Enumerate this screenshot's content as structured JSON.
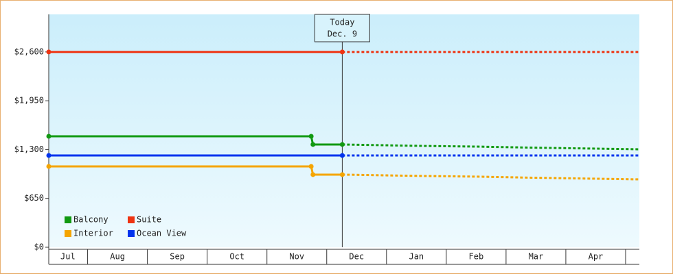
{
  "chart_data": {
    "type": "line",
    "categories": [
      "Jul",
      "Aug",
      "Sep",
      "Oct",
      "Nov",
      "Dec",
      "Jan",
      "Feb",
      "Mar",
      "Apr"
    ],
    "xticks": [
      0.67,
      1.5,
      2.5,
      3.5,
      4.5,
      5.5,
      6.5,
      7.5,
      8.5,
      9.5
    ],
    "xlim": [
      0.35,
      10.23
    ],
    "ylim": [
      0,
      3100
    ],
    "yticks": [
      {
        "value": 0,
        "label": "$0"
      },
      {
        "value": 650,
        "label": "$650"
      },
      {
        "value": 1300,
        "label": "$1,300"
      },
      {
        "value": 1950,
        "label": "$1,950"
      },
      {
        "value": 2600,
        "label": "$2,600"
      }
    ],
    "today": {
      "x": 5.26,
      "label": [
        "Today",
        "Dec. 9"
      ]
    },
    "legend": "lower left",
    "series": [
      {
        "name": "Balcony",
        "color": "#119911",
        "x": [
          0.35,
          4.74,
          4.77,
          5.26,
          6.5,
          7.5,
          8.5,
          10.23
        ],
        "values": [
          1477,
          1477,
          1368,
          1368,
          1350,
          1340,
          1325,
          1304
        ]
      },
      {
        "name": "Suite",
        "color": "#ee3311",
        "x": [
          0.35,
          5.26,
          10.23
        ],
        "values": [
          2600,
          2600,
          2600
        ]
      },
      {
        "name": "Interior",
        "color": "#f5a500",
        "x": [
          0.35,
          4.74,
          4.77,
          5.26,
          6.5,
          7.5,
          8.5,
          10.23
        ],
        "values": [
          1076,
          1076,
          967,
          967,
          950,
          940,
          925,
          903
        ]
      },
      {
        "name": "Ocean View",
        "color": "#0033ee",
        "x": [
          0.35,
          5.26,
          10.23
        ],
        "values": [
          1222,
          1222,
          1222
        ]
      }
    ]
  }
}
